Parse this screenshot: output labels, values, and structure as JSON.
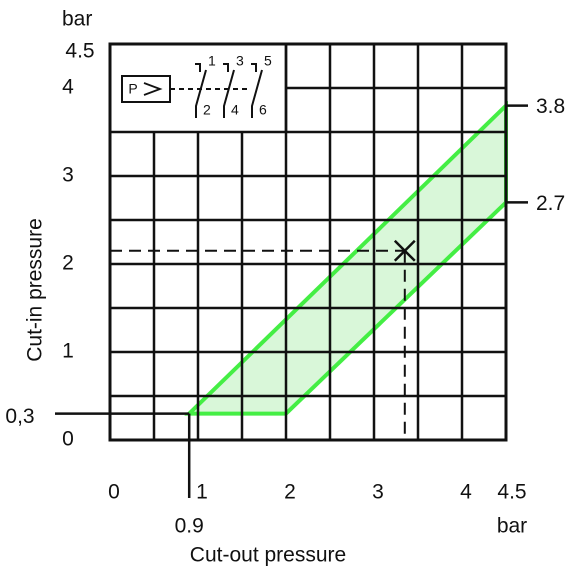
{
  "chart_data": {
    "type": "range",
    "xlabel": "Cut-out pressure",
    "ylabel": "Cut-in pressure",
    "xunit": "bar",
    "yunit": "bar",
    "xlim": [
      0,
      4.5
    ],
    "ylim": [
      0,
      4.5
    ],
    "xticks": [
      0,
      1,
      2,
      3,
      4,
      4.5
    ],
    "yticks": [
      0,
      1,
      2,
      3,
      4,
      4.5
    ],
    "xgrid": [
      0.5,
      1,
      1.5,
      2,
      2.5,
      3,
      3.5,
      4
    ],
    "ygrid": [
      0.5,
      1,
      1.5,
      2,
      2.5,
      3,
      3.5,
      4
    ],
    "region": {
      "x": [
        0.9,
        4.5,
        4.5,
        2
      ],
      "y": [
        0.3,
        3.8,
        2.7,
        0.3
      ],
      "color": "#44ee44",
      "fill": "#d9f7d9"
    },
    "x_marker": {
      "value": 0.9,
      "label": "0.9"
    },
    "y_marker": {
      "value": 0.3,
      "label": "0,3"
    },
    "right_marks": [
      3.8,
      2.7
    ],
    "setpoint": {
      "x": 3.35,
      "y": 2.15
    },
    "symbol": {
      "label": "P",
      "contacts_top": [
        "1",
        "3",
        "5"
      ],
      "contacts_bottom": [
        "2",
        "4",
        "6"
      ]
    }
  }
}
